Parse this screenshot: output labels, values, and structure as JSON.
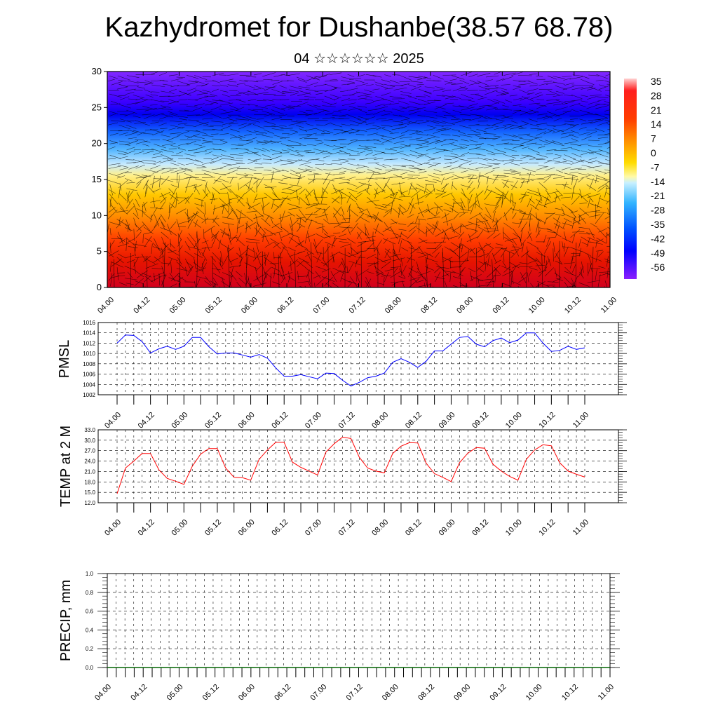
{
  "title": "Kazhydromet for Dushanbe(38.57 68.78)",
  "subtitle": "04 ☆☆☆☆☆☆ 2025",
  "time_labels": [
    "04.00",
    "04.12",
    "05.00",
    "05.12",
    "06.00",
    "06.12",
    "07.00",
    "07.12",
    "08.00",
    "08.12",
    "09.00",
    "09.12",
    "10.00",
    "10.12",
    "11.00"
  ],
  "colors": {
    "pmsl_line": "#0000ff",
    "temp_line": "#ff0000",
    "precip_line": "#006400",
    "palette": [
      "#ffc8c8",
      "#ff0000",
      "#ff5a00",
      "#ff9600",
      "#ffd200",
      "#ffff96",
      "#c8f0ff",
      "#32b4ff",
      "#0064ff",
      "#0000ff",
      "#5a00ff",
      "#8c1eff"
    ]
  },
  "chart_data": [
    {
      "type": "heatmap",
      "name": "temperature-wind-cross-section",
      "ylim": [
        0,
        30
      ],
      "yticks": [
        0,
        5,
        10,
        15,
        20,
        25,
        30
      ],
      "xticks": [
        "04.00",
        "04.12",
        "05.00",
        "05.12",
        "06.00",
        "06.12",
        "07.00",
        "07.12",
        "08.00",
        "08.12",
        "09.00",
        "09.12",
        "10.00",
        "10.12",
        "11.00"
      ],
      "colorbar_labels": [
        "35",
        "28",
        "21",
        "14",
        "7",
        "0",
        "-7",
        "-14",
        "-21",
        "-28",
        "-35",
        "-42",
        "-49",
        "-56"
      ]
    },
    {
      "type": "line",
      "name": "pmsl",
      "ylabel": "PMSL",
      "ylim": [
        1002,
        1016
      ],
      "yticks": [
        "1002",
        "1004",
        "1006",
        "1008",
        "1010",
        "1012",
        "1014",
        "1016"
      ],
      "series": [
        {
          "values": [
            1012.0,
            1013.6,
            1013.5,
            1012.3,
            1010.1,
            1010.9,
            1011.4,
            1010.8,
            1011.4,
            1013.1,
            1013.1,
            1011.3,
            1009.9,
            1010.1,
            1010.1,
            1009.7,
            1009.3,
            1009.8,
            1009.1,
            1007.2,
            1005.6,
            1005.6,
            1005.9,
            1005.5,
            1005.1,
            1006.2,
            1006.1,
            1004.8,
            1003.7,
            1004.4,
            1005.3,
            1005.6,
            1006.2,
            1008.3,
            1009.0,
            1008.3,
            1007.3,
            1008.5,
            1010.5,
            1010.5,
            1011.8,
            1013.1,
            1013.3,
            1011.8,
            1011.3,
            1012.5,
            1013.0,
            1012.1,
            1012.6,
            1014.0,
            1014.0,
            1012.0,
            1010.4,
            1010.6,
            1011.4,
            1010.8,
            1011.1
          ]
        }
      ]
    },
    {
      "type": "line",
      "name": "temp-2m",
      "ylabel": "TEMP at 2 M",
      "ylim": [
        12,
        33
      ],
      "yticks": [
        "12.0",
        "15.0",
        "18.0",
        "21.0",
        "24.0",
        "27.0",
        "30.0",
        "33.0"
      ],
      "series": [
        {
          "values": [
            14.6,
            22.0,
            24.0,
            26.2,
            26.2,
            21.5,
            19.0,
            18.2,
            17.3,
            22.5,
            26.0,
            27.6,
            27.6,
            22.0,
            19.3,
            19.2,
            18.5,
            24.5,
            27.2,
            29.4,
            29.4,
            23.7,
            22.2,
            21.1,
            20.0,
            26.6,
            29.0,
            30.9,
            30.5,
            25.1,
            22.0,
            21.1,
            20.6,
            26.2,
            28.3,
            29.3,
            29.2,
            23.4,
            20.4,
            19.3,
            18.1,
            23.5,
            26.3,
            27.9,
            27.7,
            23.1,
            21.1,
            19.6,
            18.5,
            24.5,
            27.2,
            28.7,
            28.4,
            23.5,
            21.1,
            20.2,
            19.4
          ]
        }
      ]
    },
    {
      "type": "line",
      "name": "precip",
      "ylabel": "PRECIP, mm",
      "ylim": [
        0.0,
        1.0
      ],
      "yticks": [
        "0.0",
        "0.2",
        "0.4",
        "0.6",
        "0.8",
        "1.0"
      ],
      "series": [
        {
          "values": [
            0,
            0,
            0,
            0,
            0,
            0,
            0,
            0,
            0,
            0,
            0,
            0,
            0,
            0,
            0,
            0,
            0,
            0,
            0,
            0,
            0,
            0,
            0,
            0,
            0,
            0,
            0,
            0,
            0,
            0,
            0,
            0,
            0,
            0,
            0,
            0,
            0,
            0,
            0,
            0,
            0,
            0,
            0,
            0,
            0,
            0,
            0,
            0,
            0,
            0,
            0,
            0,
            0,
            0,
            0,
            0,
            0,
            0,
            0,
            0,
            0,
            0,
            0,
            0,
            0,
            0,
            0,
            0,
            0,
            0,
            0,
            0,
            0,
            0,
            0,
            0,
            0,
            0,
            0,
            0,
            0,
            0,
            0,
            0,
            0,
            0,
            0,
            0,
            0,
            0,
            0,
            0,
            0,
            0,
            0,
            0,
            0,
            0,
            0,
            0,
            0,
            0,
            0,
            0,
            0,
            0,
            0,
            0,
            0,
            0,
            0,
            0,
            0,
            0,
            0
          ]
        }
      ]
    }
  ]
}
